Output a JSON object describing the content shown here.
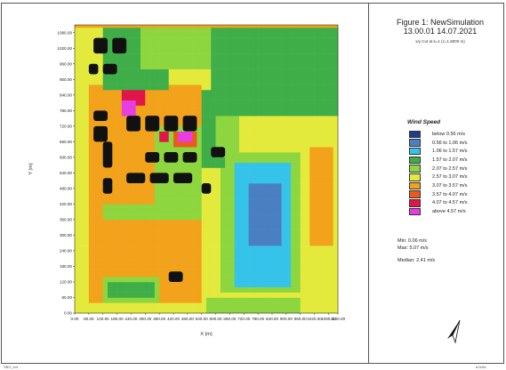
{
  "figure": {
    "title": "Figure 1: NewSimulation",
    "timestamp": "13.00.01 14.07.2021",
    "cut_label": "x/y Cut at k=1 (z=1.8000 m)"
  },
  "legend": {
    "title": "Wind Speed",
    "items": [
      {
        "label": "below 0.56 m/s",
        "color": "#1c3d8f"
      },
      {
        "label": "0.56 to 1.06 m/s",
        "color": "#4a7fc2"
      },
      {
        "label": "1.06 to 1.57 m/s",
        "color": "#35c3ea"
      },
      {
        "label": "1.57 to 2.07 m/s",
        "color": "#3fae49"
      },
      {
        "label": "2.07 to 2.57 m/s",
        "color": "#8ed63f"
      },
      {
        "label": "2.57 to 3.07 m/s",
        "color": "#e4ea3c"
      },
      {
        "label": "3.07 to 3.57 m/s",
        "color": "#f2a21b"
      },
      {
        "label": "3.57 to 4.07 m/s",
        "color": "#ea5a1d"
      },
      {
        "label": "4.07 to 4.57 m/s",
        "color": "#e01548"
      },
      {
        "label": "above 4.57 m/s",
        "color": "#e83de0"
      }
    ]
  },
  "stats": {
    "min": "Min: 0.06 m/s",
    "max": "Max: 5.07 m/s",
    "median": "Median: 2.41 m/s"
  },
  "north_arrow_icon": "north-arrow-icon",
  "footer": {
    "left": "SBG_ext",
    "right": "e2z4lc"
  },
  "chart_data": {
    "type": "heatmap",
    "title": "",
    "xlabel": "X (m)",
    "ylabel": "Y (m)",
    "xlim": [
      0,
      1120
    ],
    "ylim": [
      0,
      1110
    ],
    "x_ticks": [
      "0.00",
      "60.00",
      "120.00",
      "180.00",
      "240.00",
      "300.00",
      "360.00",
      "420.00",
      "480.00",
      "540.00",
      "600.00",
      "660.00",
      "720.00",
      "780.00",
      "840.00",
      "900.00",
      "960.00",
      "1020.00",
      "1080.00",
      "1120.00"
    ],
    "x_tick_values": [
      0,
      60,
      120,
      180,
      240,
      300,
      360,
      420,
      480,
      540,
      600,
      660,
      720,
      780,
      840,
      900,
      960,
      1020,
      1080,
      1120
    ],
    "y_ticks": [
      "0.00",
      "60.00",
      "120.00",
      "180.00",
      "240.00",
      "300.00",
      "360.00",
      "420.00",
      "480.00",
      "540.00",
      "600.00",
      "660.00",
      "720.00",
      "780.00",
      "840.00",
      "900.00",
      "960.00",
      "1020.00",
      "1080.00"
    ],
    "y_tick_values": [
      0,
      60,
      120,
      180,
      240,
      300,
      360,
      420,
      480,
      540,
      600,
      660,
      720,
      780,
      840,
      900,
      960,
      1020,
      1080
    ],
    "cell_size": 20,
    "background_class": 6,
    "regions": [
      {
        "x": [
          0,
          1120
        ],
        "y": [
          880,
          1110
        ],
        "class": 5
      },
      {
        "x": [
          0,
          60
        ],
        "y": [
          0,
          1110
        ],
        "class": 5
      },
      {
        "x": [
          540,
          1120
        ],
        "y": [
          0,
          1110
        ],
        "class": 5
      },
      {
        "x": [
          120,
          400
        ],
        "y": [
          860,
          1110
        ],
        "class": 3
      },
      {
        "x": [
          580,
          1120
        ],
        "y": [
          760,
          1110
        ],
        "class": 3
      },
      {
        "x": [
          420,
          760
        ],
        "y": [
          940,
          1110
        ],
        "class": 3
      },
      {
        "x": [
          280,
          580
        ],
        "y": [
          940,
          1110
        ],
        "class": 4
      },
      {
        "x": [
          60,
          320
        ],
        "y": [
          420,
          760
        ],
        "class": 6
      },
      {
        "x": [
          340,
          540
        ],
        "y": [
          420,
          720
        ],
        "class": 4
      },
      {
        "x": [
          620,
          960
        ],
        "y": [
          80,
          620
        ],
        "class": 4
      },
      {
        "x": [
          680,
          920
        ],
        "y": [
          100,
          580
        ],
        "class": 2
      },
      {
        "x": [
          700,
          900
        ],
        "y": [
          180,
          540
        ],
        "class": 2
      },
      {
        "x": [
          740,
          880
        ],
        "y": [
          260,
          500
        ],
        "class": 1
      },
      {
        "x": [
          960,
          1120
        ],
        "y": [
          0,
          720
        ],
        "class": 5
      },
      {
        "x": [
          1000,
          1100
        ],
        "y": [
          260,
          640
        ],
        "class": 6
      },
      {
        "x": [
          540,
          640
        ],
        "y": [
          560,
          860
        ],
        "class": 3
      },
      {
        "x": [
          600,
          700
        ],
        "y": [
          600,
          760
        ],
        "class": 4
      },
      {
        "x": [
          120,
          360
        ],
        "y": [
          40,
          140
        ],
        "class": 4
      },
      {
        "x": [
          140,
          340
        ],
        "y": [
          60,
          120
        ],
        "class": 3
      },
      {
        "x": [
          560,
          960
        ],
        "y": [
          0,
          60
        ],
        "class": 4
      },
      {
        "x": [
          60,
          540
        ],
        "y": [
          0,
          40
        ],
        "class": 5
      },
      {
        "x": [
          120,
          540
        ],
        "y": [
          360,
          420
        ],
        "class": 4
      },
      {
        "x": [
          200,
          300
        ],
        "y": [
          800,
          860
        ],
        "class": 8
      },
      {
        "x": [
          200,
          260
        ],
        "y": [
          760,
          820
        ],
        "class": 9
      },
      {
        "x": [
          420,
          520
        ],
        "y": [
          640,
          700
        ],
        "class": 7
      },
      {
        "x": [
          440,
          500
        ],
        "y": [
          660,
          700
        ],
        "class": 9
      },
      {
        "x": [
          360,
          400
        ],
        "y": [
          660,
          700
        ],
        "class": 8
      }
    ],
    "buildings": [
      {
        "x": [
          80,
          140
        ],
        "y": [
          1000,
          1060
        ]
      },
      {
        "x": [
          160,
          220
        ],
        "y": [
          1000,
          1060
        ]
      },
      {
        "x": [
          60,
          100
        ],
        "y": [
          920,
          960
        ]
      },
      {
        "x": [
          120,
          180
        ],
        "y": [
          920,
          960
        ]
      },
      {
        "x": [
          80,
          140
        ],
        "y": [
          740,
          780
        ]
      },
      {
        "x": [
          80,
          140
        ],
        "y": [
          660,
          720
        ]
      },
      {
        "x": [
          120,
          160
        ],
        "y": [
          560,
          660
        ]
      },
      {
        "x": [
          120,
          160
        ],
        "y": [
          460,
          520
        ]
      },
      {
        "x": [
          220,
          280
        ],
        "y": [
          700,
          760
        ]
      },
      {
        "x": [
          300,
          360
        ],
        "y": [
          700,
          760
        ]
      },
      {
        "x": [
          380,
          440
        ],
        "y": [
          700,
          760
        ]
      },
      {
        "x": [
          460,
          520
        ],
        "y": [
          700,
          760
        ]
      },
      {
        "x": [
          300,
          360
        ],
        "y": [
          580,
          620
        ]
      },
      {
        "x": [
          380,
          440
        ],
        "y": [
          580,
          620
        ]
      },
      {
        "x": [
          460,
          520
        ],
        "y": [
          580,
          620
        ]
      },
      {
        "x": [
          220,
          300
        ],
        "y": [
          500,
          540
        ]
      },
      {
        "x": [
          320,
          400
        ],
        "y": [
          500,
          540
        ]
      },
      {
        "x": [
          420,
          500
        ],
        "y": [
          500,
          540
        ]
      },
      {
        "x": [
          540,
          580
        ],
        "y": [
          460,
          500
        ]
      },
      {
        "x": [
          580,
          640
        ],
        "y": [
          600,
          640
        ]
      },
      {
        "x": [
          400,
          460
        ],
        "y": [
          120,
          160
        ]
      }
    ]
  }
}
